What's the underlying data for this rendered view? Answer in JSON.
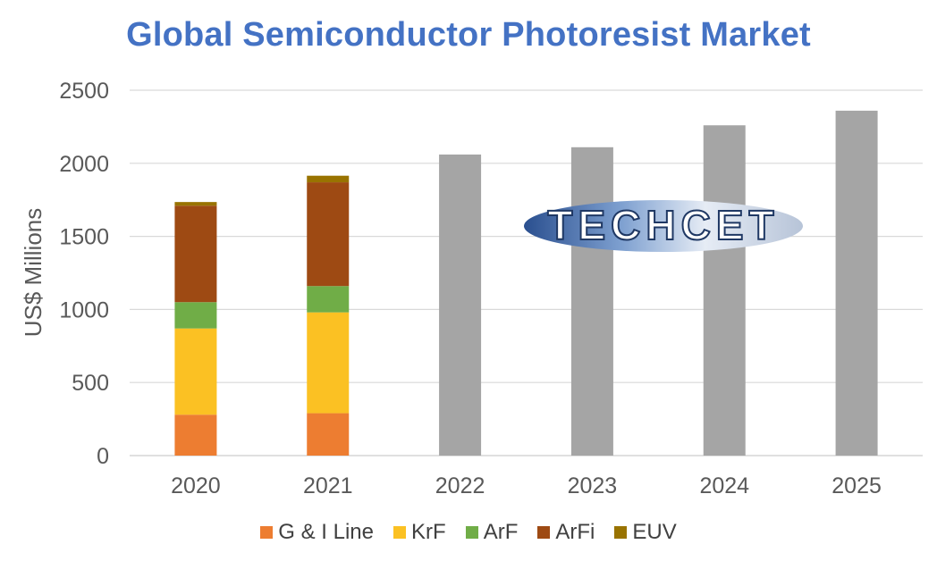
{
  "colors": {
    "title": "#4472C4",
    "text": "#595959",
    "grid": "#D9D9D9",
    "total_bar": "#A5A5A5",
    "watermark_blue": "#2F5597"
  },
  "logo": {
    "text": "TECHCET"
  },
  "chart_data": {
    "type": "bar",
    "title": "Global Semiconductor Photoresist Market",
    "ylabel": "US$ Millions",
    "xlabel": "",
    "ylim": [
      0,
      2500
    ],
    "yticks": [
      0,
      500,
      1000,
      1500,
      2000,
      2500
    ],
    "grid": true,
    "legend_position": "bottom",
    "categories": [
      "2020",
      "2021",
      "2022",
      "2023",
      "2024",
      "2025"
    ],
    "series": [
      {
        "name": "G & I Line",
        "color": "#ED7D31",
        "values": [
          280,
          290,
          null,
          null,
          null,
          null
        ]
      },
      {
        "name": "KrF",
        "color": "#FBC123",
        "values": [
          590,
          690,
          null,
          null,
          null,
          null
        ]
      },
      {
        "name": "ArF",
        "color": "#70AD47",
        "values": [
          180,
          180,
          null,
          null,
          null,
          null
        ]
      },
      {
        "name": "ArFi",
        "color": "#9E4A13",
        "values": [
          660,
          710,
          null,
          null,
          null,
          null
        ]
      },
      {
        "name": "EUV",
        "color": "#997300",
        "values": [
          25,
          45,
          null,
          null,
          null,
          null
        ]
      }
    ],
    "totals": [
      null,
      null,
      2060,
      2110,
      2260,
      2360
    ]
  }
}
